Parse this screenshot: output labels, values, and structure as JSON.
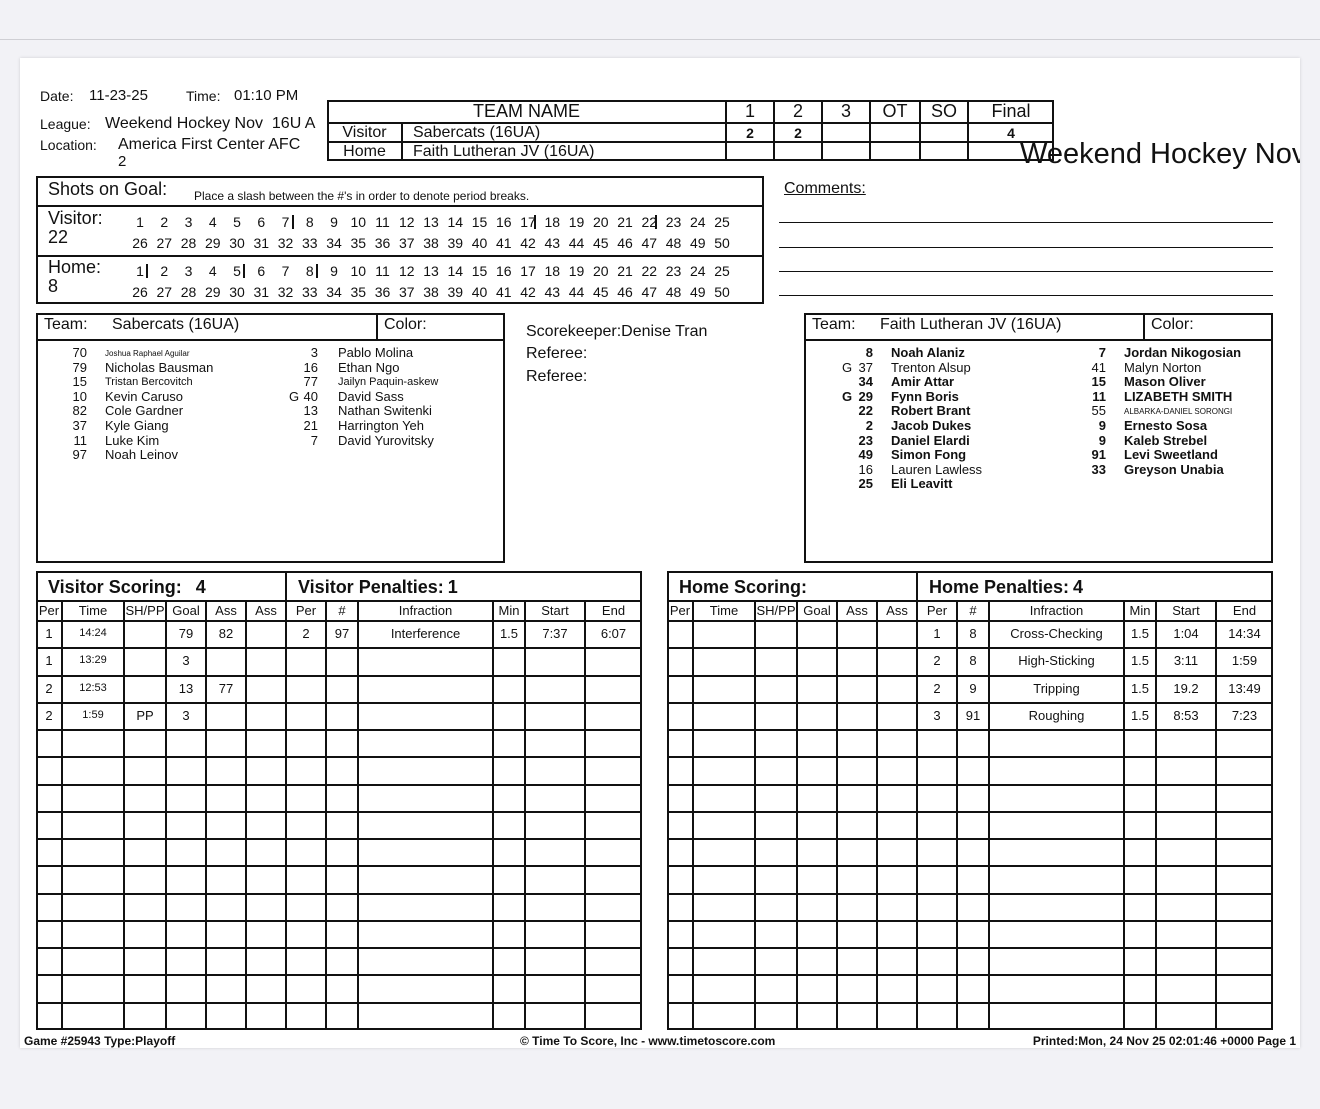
{
  "header": {
    "date_label": "Date:",
    "date": "11-23-25",
    "time_label": "Time:",
    "time": "01:10 PM",
    "league_label": "League:",
    "league": "Weekend Hockey Nov  16U A",
    "location_label": "Location:",
    "location_line1": "America First Center AFC",
    "location_line2": "2",
    "overlay_title": "Weekend Hockey Nov"
  },
  "scoreboard": {
    "team_name_header": "TEAM NAME",
    "period_headers": [
      "1",
      "2",
      "3",
      "OT",
      "SO",
      "Final"
    ],
    "rows": [
      {
        "label": "Visitor",
        "team": "Sabercats (16UA)",
        "scores": [
          "2",
          "2",
          "",
          "",
          "",
          "4"
        ]
      },
      {
        "label": "Home",
        "team": "Faith Lutheran JV (16UA)",
        "scores": [
          "",
          "",
          "",
          "",
          "",
          ""
        ]
      }
    ]
  },
  "shots": {
    "title": "Shots on Goal:",
    "instruction": "Place a slash between the #'s in order to denote period breaks.",
    "visitor": {
      "label": "Visitor:",
      "total": "22",
      "breaks_after": [
        7,
        17,
        22
      ]
    },
    "home": {
      "label": "Home:",
      "total": "8",
      "breaks_after": [
        1,
        5,
        8
      ]
    },
    "max": 50
  },
  "comments": {
    "label": "Comments:"
  },
  "officials": {
    "scorekeeper": "Scorekeeper:Denise Tran",
    "referee1": "Referee:",
    "referee2": "Referee:"
  },
  "visitor_roster": {
    "team_label": "Team:",
    "team": "Sabercats (16UA)",
    "color_label": "Color:",
    "col1": [
      {
        "pos": "",
        "num": "70",
        "name": "Joshua Raphael Aguilar",
        "size": "xs"
      },
      {
        "pos": "",
        "num": "79",
        "name": "Nicholas Bausman"
      },
      {
        "pos": "",
        "num": "15",
        "name": "Tristan Bercovitch",
        "size": "s"
      },
      {
        "pos": "",
        "num": "10",
        "name": "Kevin Caruso"
      },
      {
        "pos": "",
        "num": "82",
        "name": "Cole Gardner"
      },
      {
        "pos": "",
        "num": "37",
        "name": "Kyle Giang"
      },
      {
        "pos": "",
        "num": "11",
        "name": "Luke Kim"
      },
      {
        "pos": "",
        "num": "97",
        "name": "Noah Leinov"
      }
    ],
    "col2": [
      {
        "pos": "",
        "num": "3",
        "name": "Pablo Molina"
      },
      {
        "pos": "",
        "num": "16",
        "name": "Ethan Ngo"
      },
      {
        "pos": "",
        "num": "77",
        "name": "Jailyn Paquin-askew",
        "size": "s"
      },
      {
        "pos": "G",
        "num": "40",
        "name": "David Sass"
      },
      {
        "pos": "",
        "num": "13",
        "name": "Nathan Switenki"
      },
      {
        "pos": "",
        "num": "21",
        "name": "Harrington Yeh"
      },
      {
        "pos": "",
        "num": "7",
        "name": "David Yurovitsky"
      }
    ]
  },
  "home_roster": {
    "team_label": "Team:",
    "team": "Faith Lutheran JV (16UA)",
    "color_label": "Color:",
    "col1": [
      {
        "pos": "",
        "num": "8",
        "name": "Noah Alaniz",
        "bold": true
      },
      {
        "pos": "G",
        "num": "37",
        "name": "Trenton Alsup"
      },
      {
        "pos": "",
        "num": "34",
        "name": "Amir Attar",
        "bold": true
      },
      {
        "pos": "G",
        "num": "29",
        "name": "Fynn Boris",
        "bold": true
      },
      {
        "pos": "",
        "num": "22",
        "name": "Robert Brant",
        "bold": true
      },
      {
        "pos": "",
        "num": "2",
        "name": "Jacob Dukes",
        "bold": true
      },
      {
        "pos": "",
        "num": "23",
        "name": "Daniel Elardi",
        "bold": true
      },
      {
        "pos": "",
        "num": "49",
        "name": "Simon Fong",
        "bold": true
      },
      {
        "pos": "",
        "num": "16",
        "name": "Lauren Lawless"
      },
      {
        "pos": "",
        "num": "25",
        "name": "Eli Leavitt",
        "bold": true
      }
    ],
    "col2": [
      {
        "pos": "",
        "num": "7",
        "name": "Jordan Nikogosian",
        "bold": true
      },
      {
        "pos": "",
        "num": "41",
        "name": "Malyn Norton"
      },
      {
        "pos": "",
        "num": "15",
        "name": "Mason Oliver",
        "bold": true
      },
      {
        "pos": "",
        "num": "11",
        "name": "LIZABETH SMITH",
        "bold": true
      },
      {
        "pos": "",
        "num": "55",
        "name": "ALBARKA-DANIEL SORONGI",
        "size": "xs"
      },
      {
        "pos": "",
        "num": "9",
        "name": "Ernesto Sosa",
        "bold": true
      },
      {
        "pos": "",
        "num": "9",
        "name": "Kaleb Strebel",
        "bold": true
      },
      {
        "pos": "",
        "num": "91",
        "name": "Levi Sweetland",
        "bold": true
      },
      {
        "pos": "",
        "num": "33",
        "name": "Greyson Unabia",
        "bold": true
      }
    ]
  },
  "scoring_columns": [
    "Per",
    "Time",
    "SH/PP",
    "Goal",
    "Ass",
    "Ass"
  ],
  "penalty_columns": [
    "Per",
    "#",
    "Infraction",
    "Min",
    "Start",
    "End"
  ],
  "visitor_scoring": {
    "title": "Visitor Scoring:",
    "count": "4",
    "rows": [
      [
        "1",
        "14:24",
        "",
        "79",
        "82",
        ""
      ],
      [
        "1",
        "13:29",
        "",
        "3",
        "",
        ""
      ],
      [
        "2",
        "12:53",
        "",
        "13",
        "77",
        ""
      ],
      [
        "2",
        "1:59",
        "PP",
        "3",
        "",
        ""
      ]
    ]
  },
  "visitor_penalties": {
    "title": "Visitor Penalties:",
    "count": "1",
    "rows": [
      [
        "2",
        "97",
        "Interference",
        "1.5",
        "7:37",
        "6:07"
      ]
    ]
  },
  "home_scoring": {
    "title": "Home Scoring:",
    "count": "",
    "rows": []
  },
  "home_penalties": {
    "title": "Home Penalties:",
    "count": "4",
    "rows": [
      [
        "1",
        "8",
        "Cross-Checking",
        "1.5",
        "1:04",
        "14:34"
      ],
      [
        "2",
        "8",
        "High-Sticking",
        "1.5",
        "3:11",
        "1:59"
      ],
      [
        "2",
        "9",
        "Tripping",
        "1.5",
        "19.2",
        "13:49"
      ],
      [
        "3",
        "91",
        "Roughing",
        "1.5",
        "8:53",
        "7:23"
      ]
    ]
  },
  "footer": {
    "game": "Game #25943 Type:Playoff",
    "copyright": "© Time To Score, Inc - www.timetoscore.com",
    "printed": "Printed:Mon, 24 Nov 25 02:01:46 +0000 Page 1"
  }
}
